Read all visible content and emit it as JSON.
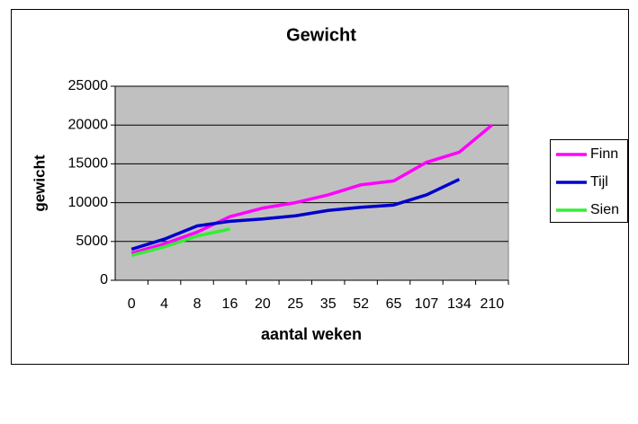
{
  "chart_data": {
    "type": "line",
    "title": "Gewicht",
    "xlabel": "aantal weken",
    "ylabel": "gewicht",
    "categories": [
      "0",
      "4",
      "8",
      "16",
      "20",
      "25",
      "35",
      "52",
      "65",
      "107",
      "134",
      "210"
    ],
    "series": [
      {
        "name": "Finn",
        "color": "#ff00ff",
        "values": [
          3500,
          4700,
          6200,
          8200,
          9300,
          10000,
          11000,
          12300,
          12800,
          15200,
          16500,
          20000
        ]
      },
      {
        "name": "Tijl",
        "color": "#0000cc",
        "values": [
          4000,
          5300,
          7000,
          7600,
          7900,
          8300,
          9000,
          9400,
          9700,
          11000,
          13000,
          null
        ]
      },
      {
        "name": "Sien",
        "color": "#33ee33",
        "values": [
          3200,
          4300,
          5700,
          6600,
          null,
          null,
          null,
          null,
          null,
          null,
          null,
          null
        ]
      }
    ],
    "ylim": [
      0,
      25000
    ],
    "yticks": [
      0,
      5000,
      10000,
      15000,
      20000,
      25000
    ],
    "grid": true,
    "legend": "right"
  }
}
